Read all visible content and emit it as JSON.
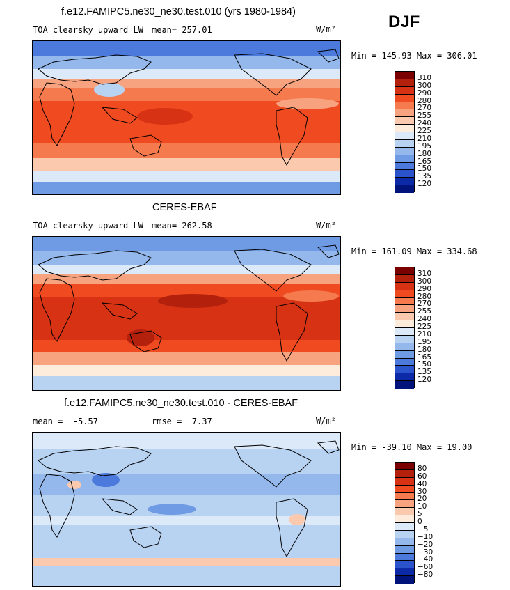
{
  "season": "DJF",
  "units_label": "W/m²",
  "panels": [
    {
      "title": "f.e12.FAMIPC5.ne30_ne30.test.010 (yrs 1980-1984)",
      "variable": "TOA clearsky upward LW",
      "mean_label": "mean=",
      "mean_value": "257.01",
      "rmse_label": "",
      "rmse_value": "",
      "minmax": "Min = 145.93 Max = 306.01",
      "levels": [
        "310",
        "300",
        "290",
        "280",
        "270",
        "255",
        "240",
        "225",
        "210",
        "195",
        "180",
        "165",
        "150",
        "135",
        "120"
      ],
      "colors": [
        "#7a0000",
        "#b3200b",
        "#d73214",
        "#f04a20",
        "#f57a4e",
        "#f7a37f",
        "#fbc9ae",
        "#fdebdc",
        "#dce9f8",
        "#b8d2f2",
        "#94b8ec",
        "#6f9be4",
        "#4b79dc",
        "#2b53cc",
        "#0c2aa8",
        "#00137a"
      ]
    },
    {
      "title": "CERES-EBAF",
      "variable": "TOA clearsky upward LW",
      "mean_label": "mean=",
      "mean_value": "262.58",
      "rmse_label": "",
      "rmse_value": "",
      "minmax": "Min = 161.09 Max = 334.68",
      "levels": [
        "310",
        "300",
        "290",
        "280",
        "270",
        "255",
        "240",
        "225",
        "210",
        "195",
        "180",
        "165",
        "150",
        "135",
        "120"
      ],
      "colors": [
        "#7a0000",
        "#b3200b",
        "#d73214",
        "#f04a20",
        "#f57a4e",
        "#f7a37f",
        "#fbc9ae",
        "#fdebdc",
        "#dce9f8",
        "#b8d2f2",
        "#94b8ec",
        "#6f9be4",
        "#4b79dc",
        "#2b53cc",
        "#0c2aa8",
        "#00137a"
      ]
    },
    {
      "title": "f.e12.FAMIPC5.ne30_ne30.test.010 - CERES-EBAF",
      "variable": "",
      "mean_label": "mean =",
      "mean_value": "-5.57",
      "rmse_label": "rmse =",
      "rmse_value": "7.37",
      "minmax": "Min = -39.10 Max =  19.00",
      "levels": [
        "80",
        "60",
        "40",
        "30",
        "20",
        "10",
        "5",
        "0",
        "−5",
        "−10",
        "−20",
        "−30",
        "−40",
        "−60",
        "−80"
      ],
      "colors": [
        "#7a0000",
        "#b3200b",
        "#d73214",
        "#f04a20",
        "#f57a4e",
        "#f7a37f",
        "#fbc9ae",
        "#fdebdc",
        "#dce9f8",
        "#b8d2f2",
        "#94b8ec",
        "#6f9be4",
        "#4b79dc",
        "#2b53cc",
        "#0c2aa8",
        "#00137a"
      ]
    }
  ]
}
